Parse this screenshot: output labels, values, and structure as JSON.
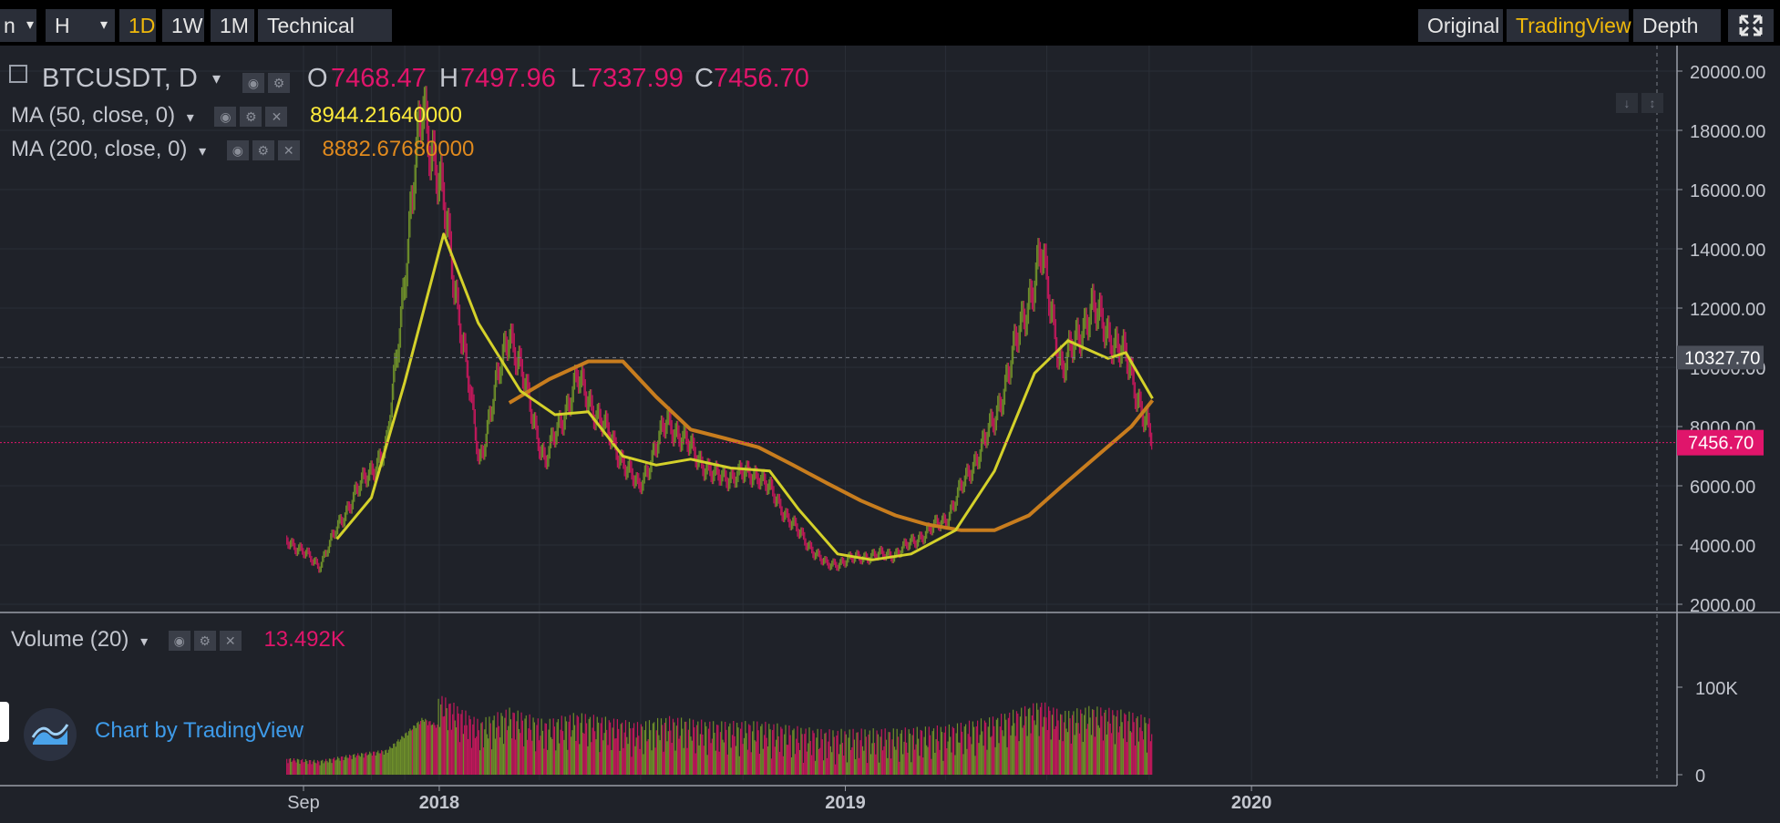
{
  "toolbar": {
    "left_cut": "n",
    "interval_select": "H",
    "intervals": [
      "1D",
      "1W",
      "1M"
    ],
    "active_interval": "1D",
    "tech_ind": "Technical Ind",
    "views": [
      "Original",
      "TradingView",
      "Depth"
    ],
    "active_view": "TradingView"
  },
  "legend": {
    "symbol": "BTCUSDT, D",
    "o_label": "O",
    "o_value": "7468.47",
    "h_label": "H",
    "h_value": "7497.96",
    "l_label": "L",
    "l_value": "7337.99",
    "c_label": "C",
    "c_value": "7456.70",
    "ma50_label": "MA (50, close, 0)",
    "ma50_value": "8944.21640000",
    "ma200_label": "MA (200, close, 0)",
    "ma200_value": "8882.67680000",
    "volume_label": "Volume (20)",
    "volume_value": "13.492K"
  },
  "watermark": {
    "text": "Chart by TradingView"
  },
  "colors": {
    "background": "#1f2229",
    "up": "#6e8f2a",
    "down": "#c2185b",
    "ma50": "#d4d12a",
    "ma200": "#c87d1e",
    "price_line": "#e0156b",
    "active_tab": "#f0b90b"
  },
  "chart_data": {
    "type": "line",
    "price_axis": {
      "ticks": [
        "20000.00",
        "18000.00",
        "16000.00",
        "14000.00",
        "12000.00",
        "10000.00",
        "8000.00",
        "6000.00",
        "4000.00",
        "2000.00"
      ],
      "ylim": [
        2000,
        20000
      ],
      "crosshair_label": "10327.70",
      "last_price_label": "7456.70"
    },
    "volume_axis": {
      "ticks": [
        "100K",
        "0"
      ]
    },
    "time_axis": {
      "labels": [
        "Sep",
        "2018",
        "2019",
        "2020"
      ]
    },
    "series": [
      {
        "name": "BTCUSDT",
        "x": [
          "2017-08-17",
          "2017-09-15",
          "2017-10-15",
          "2017-11-15",
          "2017-12-17",
          "2018-01-07",
          "2018-02-06",
          "2018-03-05",
          "2018-04-06",
          "2018-05-05",
          "2018-06-29",
          "2018-07-25",
          "2018-09-05",
          "2018-10-15",
          "2018-11-20",
          "2018-12-15",
          "2019-01-15",
          "2019-02-15",
          "2019-04-02",
          "2019-05-15",
          "2019-06-26",
          "2019-07-15",
          "2019-08-10",
          "2019-09-10",
          "2019-10-04"
        ],
        "values": [
          4200,
          3300,
          5600,
          7300,
          19000,
          15000,
          6800,
          11300,
          6800,
          9600,
          5900,
          8200,
          6300,
          6400,
          4400,
          3300,
          3600,
          3700,
          4900,
          8200,
          13800,
          9900,
          12000,
          10300,
          7456.7
        ]
      },
      {
        "name": "MA (50, close, 0)",
        "x": [
          "2017-10-01",
          "2017-11-01",
          "2017-12-01",
          "2018-01-05",
          "2018-02-05",
          "2018-03-15",
          "2018-04-15",
          "2018-05-15",
          "2018-06-15",
          "2018-07-15",
          "2018-08-15",
          "2018-09-20",
          "2018-10-25",
          "2018-11-20",
          "2018-12-25",
          "2019-01-25",
          "2019-03-01",
          "2019-04-10",
          "2019-05-15",
          "2019-06-20",
          "2019-07-20",
          "2019-08-25",
          "2019-09-10",
          "2019-10-04"
        ],
        "values": [
          4200,
          5600,
          9500,
          14500,
          11500,
          9200,
          8400,
          8500,
          7000,
          6700,
          6900,
          6600,
          6500,
          5200,
          3700,
          3500,
          3700,
          4500,
          6500,
          9800,
          10900,
          10300,
          10500,
          8944.2164
        ]
      },
      {
        "name": "MA (200, close, 0)",
        "x": [
          "2018-03-05",
          "2018-04-10",
          "2018-05-15",
          "2018-06-15",
          "2018-07-15",
          "2018-08-15",
          "2018-09-15",
          "2018-10-15",
          "2018-11-15",
          "2018-12-15",
          "2019-01-15",
          "2019-02-15",
          "2019-03-15",
          "2019-04-15",
          "2019-05-15",
          "2019-06-15",
          "2019-07-15",
          "2019-08-15",
          "2019-09-15",
          "2019-10-04"
        ],
        "values": [
          8800,
          9600,
          10200,
          10200,
          9000,
          7900,
          7600,
          7300,
          6700,
          6100,
          5500,
          5000,
          4700,
          4500,
          4500,
          5000,
          6000,
          7000,
          8000,
          8882.6768
        ]
      }
    ]
  }
}
